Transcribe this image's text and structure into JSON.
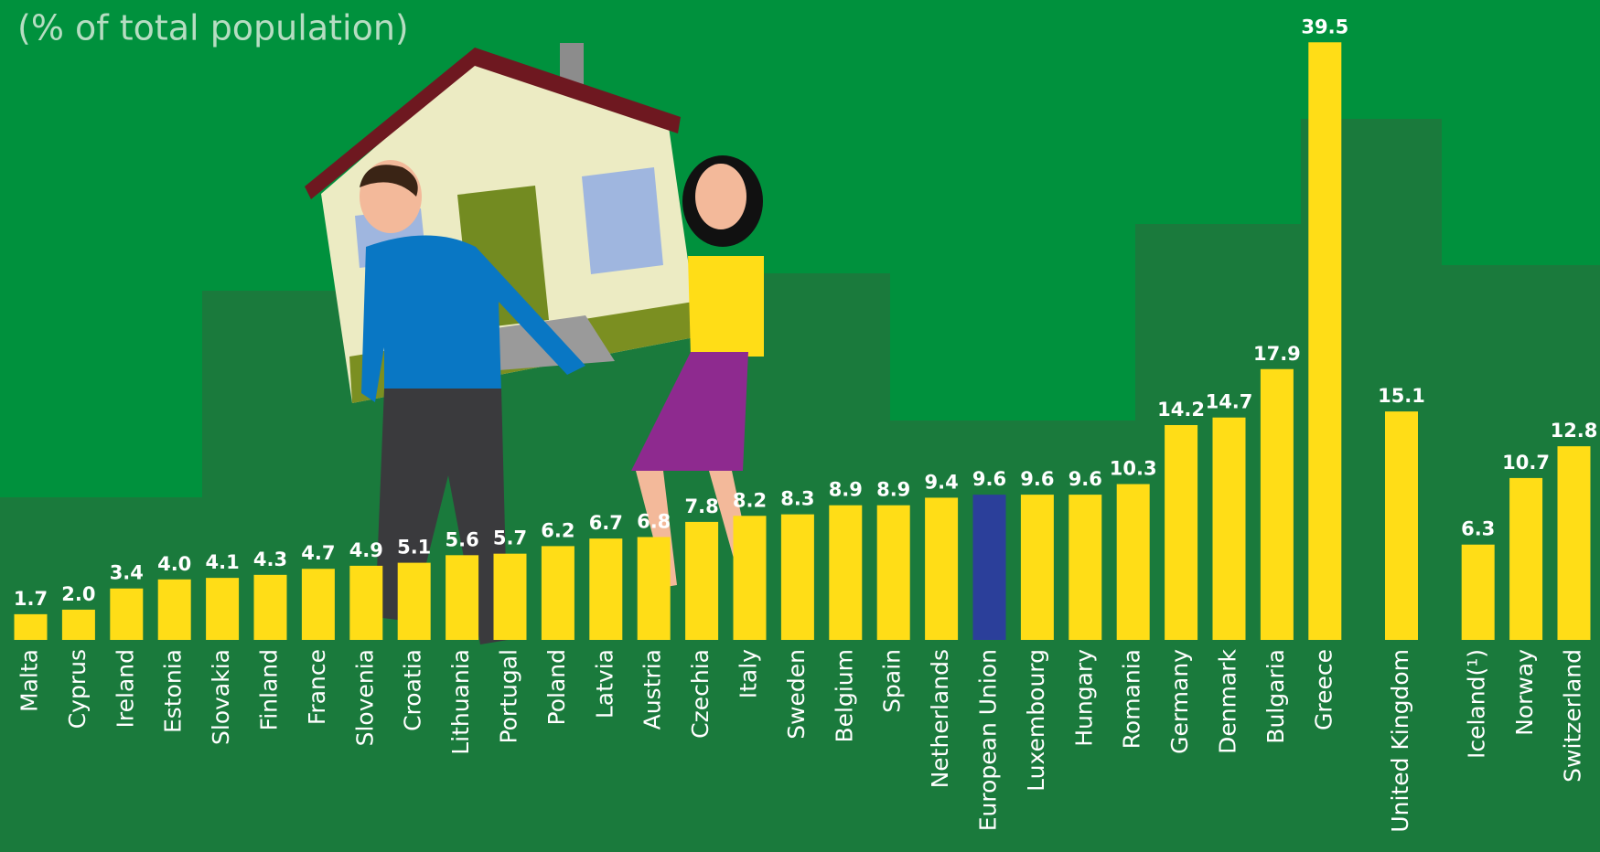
{
  "chart_data": {
    "type": "bar",
    "subtitle": "(% of total population)",
    "categories": [
      "Malta",
      "Cyprus",
      "Ireland",
      "Estonia",
      "Slovakia",
      "Finland",
      "France",
      "Slovenia",
      "Croatia",
      "Lithuania",
      "Portugal",
      "Poland",
      "Latvia",
      "Austria",
      "Czechia",
      "Italy",
      "Sweden",
      "Belgium",
      "Spain",
      "Netherlands",
      "European Union",
      "Luxembourg",
      "Hungary",
      "Romania",
      "Germany",
      "Denmark",
      "Bulgaria",
      "Greece",
      null,
      "United Kingdom",
      null,
      "Iceland(¹)",
      "Norway",
      "Switzerland"
    ],
    "values": [
      1.7,
      2.0,
      3.4,
      4.0,
      4.1,
      4.3,
      4.7,
      4.9,
      5.1,
      5.6,
      5.7,
      6.2,
      6.7,
      6.8,
      7.8,
      8.2,
      8.3,
      8.9,
      8.9,
      9.4,
      9.6,
      9.6,
      9.6,
      10.3,
      14.2,
      14.7,
      17.9,
      39.5,
      null,
      15.1,
      null,
      6.3,
      10.7,
      12.8
    ],
    "value_labels": [
      "1.7",
      "2.0",
      "3.4",
      "4.0",
      "4.1",
      "4.3",
      "4.7",
      "4.9",
      "5.1",
      "5.6",
      "5.7",
      "6.2",
      "6.7",
      "6.8",
      "7.8",
      "8.2",
      "8.3",
      "8.9",
      "8.9",
      "9.4",
      "9.6",
      "9.6",
      "9.6",
      "10.3",
      "14.2",
      "14.7",
      "17.9",
      "39.5",
      null,
      "15.1",
      null,
      "6.3",
      "10.7",
      "12.8"
    ],
    "colors": [
      "#ffdd17",
      "#ffdd17",
      "#ffdd17",
      "#ffdd17",
      "#ffdd17",
      "#ffdd17",
      "#ffdd17",
      "#ffdd17",
      "#ffdd17",
      "#ffdd17",
      "#ffdd17",
      "#ffdd17",
      "#ffdd17",
      "#ffdd17",
      "#ffdd17",
      "#ffdd17",
      "#ffdd17",
      "#ffdd17",
      "#ffdd17",
      "#ffdd17",
      "#2b3f9a",
      "#ffdd17",
      "#ffdd17",
      "#ffdd17",
      "#ffdd17",
      "#ffdd17",
      "#ffdd17",
      "#ffdd17",
      null,
      "#ffdd17",
      null,
      "#ffdd17",
      "#ffdd17",
      "#ffdd17"
    ]
  }
}
